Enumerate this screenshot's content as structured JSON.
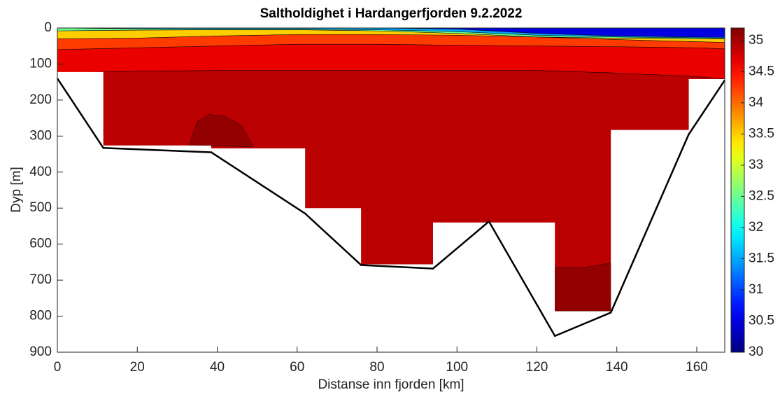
{
  "chart_data": {
    "type": "section",
    "title": "Saltholdighet i Hardangerfjorden 9.2.2022",
    "x_label": "Distanse inn fjorden [km]",
    "y_label": "Dyp [m]",
    "xlim": [
      0,
      167
    ],
    "ylim": [
      0,
      900
    ],
    "xticks": [
      0,
      20,
      40,
      60,
      80,
      100,
      120,
      140,
      160
    ],
    "yticks": [
      0,
      100,
      200,
      300,
      400,
      500,
      600,
      700,
      800,
      900
    ],
    "clim": [
      30,
      35.2
    ],
    "cticks": [
      30,
      30.5,
      31,
      31.5,
      32,
      32.5,
      33,
      33.5,
      34,
      34.5,
      35
    ],
    "colormap": "jet",
    "bathymetry": {
      "x": [
        0,
        11.5,
        38.5,
        62,
        76,
        94,
        108,
        124.5,
        138.5,
        158,
        167
      ],
      "depth": [
        140,
        333,
        345,
        515,
        658,
        668,
        537,
        855,
        790,
        295,
        145
      ],
      "color": "#000000"
    },
    "stations": {
      "x0": [
        0,
        11.5,
        38.5,
        62,
        76,
        94,
        108,
        124.5,
        138.5,
        158
      ],
      "x1": [
        11.5,
        38.5,
        62,
        76,
        94,
        108,
        124.5,
        138.5,
        158,
        167
      ],
      "depth": [
        122,
        326,
        334,
        500,
        656,
        540,
        540,
        786,
        283,
        142
      ]
    },
    "contours": {
      "x": [
        0,
        20,
        40,
        60,
        80,
        100,
        120,
        140,
        160,
        167
      ],
      "levels": [
        {
          "level": 31,
          "depth": [
            0,
            0,
            0,
            0,
            0,
            3,
            15,
            22,
            25,
            26
          ]
        },
        {
          "level": 32,
          "depth": [
            0,
            2,
            3,
            3,
            5,
            10,
            20,
            25,
            27,
            28
          ]
        },
        {
          "level": 33,
          "depth": [
            8,
            6,
            5,
            5,
            8,
            15,
            25,
            28,
            30,
            30
          ]
        },
        {
          "level": 34,
          "depth": [
            30,
            28,
            22,
            18,
            18,
            20,
            25,
            32,
            38,
            40
          ]
        },
        {
          "level": 34.5,
          "depth": [
            60,
            55,
            50,
            45,
            45,
            48,
            50,
            52,
            55,
            58
          ]
        },
        {
          "level": 34.8,
          "depth": [
            125,
            120,
            118,
            118,
            118,
            118,
            118,
            125,
            135,
            142
          ]
        }
      ]
    },
    "patches": [
      {
        "level": 35,
        "x": [
          33,
          35,
          38,
          42,
          46,
          49
        ],
        "depth": [
          325,
          260,
          240,
          245,
          270,
          330
        ]
      },
      {
        "level": 35,
        "x": [
          124.5,
          124.5,
          132,
          138.5,
          138.5
        ],
        "depth": [
          786,
          665,
          665,
          652,
          786
        ]
      }
    ]
  }
}
